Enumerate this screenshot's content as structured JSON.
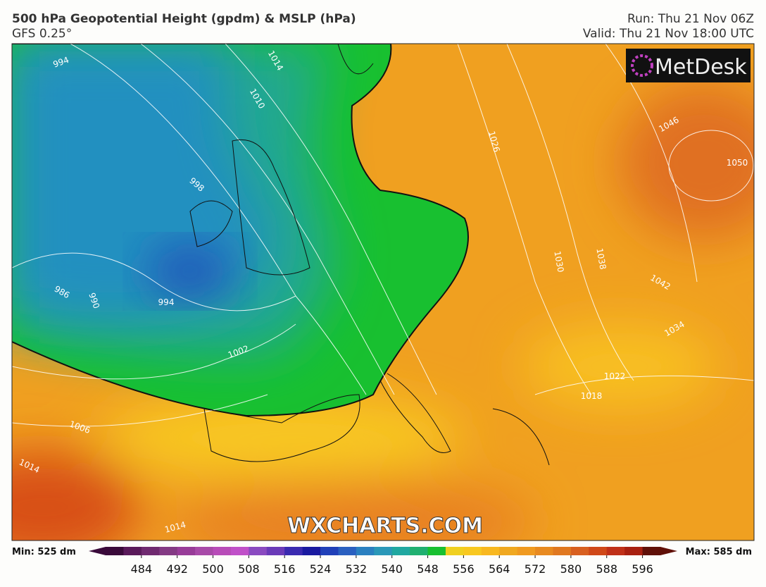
{
  "header": {
    "title": "500 hPa Geopotential Height (gpdm) & MSLP (hPa)",
    "subtitle": "GFS 0.25°",
    "run": "Run: Thu 21 Nov 06Z",
    "valid": "Valid: Thu 21 Nov 18:00 UTC"
  },
  "logo": "MetDesk",
  "watermark": "WXCHARTS.COM",
  "isobar_labels": [
    "994",
    "1014",
    "1010",
    "998",
    "986",
    "990",
    "994",
    "1002",
    "1006",
    "1014",
    "1014",
    "1026",
    "1030",
    "1038",
    "1042",
    "1046",
    "1050",
    "1034",
    "1022",
    "1018"
  ],
  "colorbar": {
    "min_label": "Min: 525 dm",
    "max_label": "Max: 585 dm",
    "range": [
      476,
      600
    ],
    "ticks": [
      484,
      492,
      500,
      508,
      516,
      524,
      532,
      540,
      548,
      556,
      564,
      572,
      580,
      588,
      596
    ],
    "colors": [
      "#3a0a3a",
      "#5a1a5a",
      "#702a70",
      "#843a84",
      "#983c98",
      "#a84aa8",
      "#b84cb8",
      "#c050c8",
      "#8a4ac0",
      "#6a3ab8",
      "#3a2ab0",
      "#1a1aa0",
      "#2040b8",
      "#2a60c0",
      "#2a80c0",
      "#2a98b8",
      "#20a8a0",
      "#20b070",
      "#18c030",
      "#f0d020",
      "#f8c820",
      "#f8b820",
      "#f0a820",
      "#f09a20",
      "#e88a20",
      "#e07820",
      "#d86020",
      "#d04818",
      "#c03018",
      "#a82010",
      "#601008"
    ]
  }
}
